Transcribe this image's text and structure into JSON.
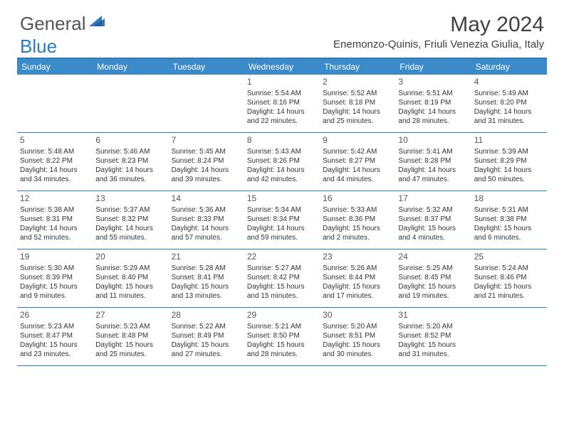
{
  "logo": {
    "general": "General",
    "blue": "Blue"
  },
  "title": "May 2024",
  "location": "Enemonzo-Quinis, Friuli Venezia Giulia, Italy",
  "brand_color": "#3b8aca",
  "border_color": "#2a7bbf",
  "text_color": "#333333",
  "days_of_week": [
    "Sunday",
    "Monday",
    "Tuesday",
    "Wednesday",
    "Thursday",
    "Friday",
    "Saturday"
  ],
  "rows": [
    [
      null,
      null,
      null,
      {
        "n": "1",
        "sr": "Sunrise: 5:54 AM",
        "ss": "Sunset: 8:16 PM",
        "d1": "Daylight: 14 hours",
        "d2": "and 22 minutes."
      },
      {
        "n": "2",
        "sr": "Sunrise: 5:52 AM",
        "ss": "Sunset: 8:18 PM",
        "d1": "Daylight: 14 hours",
        "d2": "and 25 minutes."
      },
      {
        "n": "3",
        "sr": "Sunrise: 5:51 AM",
        "ss": "Sunset: 8:19 PM",
        "d1": "Daylight: 14 hours",
        "d2": "and 28 minutes."
      },
      {
        "n": "4",
        "sr": "Sunrise: 5:49 AM",
        "ss": "Sunset: 8:20 PM",
        "d1": "Daylight: 14 hours",
        "d2": "and 31 minutes."
      }
    ],
    [
      {
        "n": "5",
        "sr": "Sunrise: 5:48 AM",
        "ss": "Sunset: 8:22 PM",
        "d1": "Daylight: 14 hours",
        "d2": "and 34 minutes."
      },
      {
        "n": "6",
        "sr": "Sunrise: 5:46 AM",
        "ss": "Sunset: 8:23 PM",
        "d1": "Daylight: 14 hours",
        "d2": "and 36 minutes."
      },
      {
        "n": "7",
        "sr": "Sunrise: 5:45 AM",
        "ss": "Sunset: 8:24 PM",
        "d1": "Daylight: 14 hours",
        "d2": "and 39 minutes."
      },
      {
        "n": "8",
        "sr": "Sunrise: 5:43 AM",
        "ss": "Sunset: 8:26 PM",
        "d1": "Daylight: 14 hours",
        "d2": "and 42 minutes."
      },
      {
        "n": "9",
        "sr": "Sunrise: 5:42 AM",
        "ss": "Sunset: 8:27 PM",
        "d1": "Daylight: 14 hours",
        "d2": "and 44 minutes."
      },
      {
        "n": "10",
        "sr": "Sunrise: 5:41 AM",
        "ss": "Sunset: 8:28 PM",
        "d1": "Daylight: 14 hours",
        "d2": "and 47 minutes."
      },
      {
        "n": "11",
        "sr": "Sunrise: 5:39 AM",
        "ss": "Sunset: 8:29 PM",
        "d1": "Daylight: 14 hours",
        "d2": "and 50 minutes."
      }
    ],
    [
      {
        "n": "12",
        "sr": "Sunrise: 5:38 AM",
        "ss": "Sunset: 8:31 PM",
        "d1": "Daylight: 14 hours",
        "d2": "and 52 minutes."
      },
      {
        "n": "13",
        "sr": "Sunrise: 5:37 AM",
        "ss": "Sunset: 8:32 PM",
        "d1": "Daylight: 14 hours",
        "d2": "and 55 minutes."
      },
      {
        "n": "14",
        "sr": "Sunrise: 5:36 AM",
        "ss": "Sunset: 8:33 PM",
        "d1": "Daylight: 14 hours",
        "d2": "and 57 minutes."
      },
      {
        "n": "15",
        "sr": "Sunrise: 5:34 AM",
        "ss": "Sunset: 8:34 PM",
        "d1": "Daylight: 14 hours",
        "d2": "and 59 minutes."
      },
      {
        "n": "16",
        "sr": "Sunrise: 5:33 AM",
        "ss": "Sunset: 8:36 PM",
        "d1": "Daylight: 15 hours",
        "d2": "and 2 minutes."
      },
      {
        "n": "17",
        "sr": "Sunrise: 5:32 AM",
        "ss": "Sunset: 8:37 PM",
        "d1": "Daylight: 15 hours",
        "d2": "and 4 minutes."
      },
      {
        "n": "18",
        "sr": "Sunrise: 5:31 AM",
        "ss": "Sunset: 8:38 PM",
        "d1": "Daylight: 15 hours",
        "d2": "and 6 minutes."
      }
    ],
    [
      {
        "n": "19",
        "sr": "Sunrise: 5:30 AM",
        "ss": "Sunset: 8:39 PM",
        "d1": "Daylight: 15 hours",
        "d2": "and 9 minutes."
      },
      {
        "n": "20",
        "sr": "Sunrise: 5:29 AM",
        "ss": "Sunset: 8:40 PM",
        "d1": "Daylight: 15 hours",
        "d2": "and 11 minutes."
      },
      {
        "n": "21",
        "sr": "Sunrise: 5:28 AM",
        "ss": "Sunset: 8:41 PM",
        "d1": "Daylight: 15 hours",
        "d2": "and 13 minutes."
      },
      {
        "n": "22",
        "sr": "Sunrise: 5:27 AM",
        "ss": "Sunset: 8:42 PM",
        "d1": "Daylight: 15 hours",
        "d2": "and 15 minutes."
      },
      {
        "n": "23",
        "sr": "Sunrise: 5:26 AM",
        "ss": "Sunset: 8:44 PM",
        "d1": "Daylight: 15 hours",
        "d2": "and 17 minutes."
      },
      {
        "n": "24",
        "sr": "Sunrise: 5:25 AM",
        "ss": "Sunset: 8:45 PM",
        "d1": "Daylight: 15 hours",
        "d2": "and 19 minutes."
      },
      {
        "n": "25",
        "sr": "Sunrise: 5:24 AM",
        "ss": "Sunset: 8:46 PM",
        "d1": "Daylight: 15 hours",
        "d2": "and 21 minutes."
      }
    ],
    [
      {
        "n": "26",
        "sr": "Sunrise: 5:23 AM",
        "ss": "Sunset: 8:47 PM",
        "d1": "Daylight: 15 hours",
        "d2": "and 23 minutes."
      },
      {
        "n": "27",
        "sr": "Sunrise: 5:23 AM",
        "ss": "Sunset: 8:48 PM",
        "d1": "Daylight: 15 hours",
        "d2": "and 25 minutes."
      },
      {
        "n": "28",
        "sr": "Sunrise: 5:22 AM",
        "ss": "Sunset: 8:49 PM",
        "d1": "Daylight: 15 hours",
        "d2": "and 27 minutes."
      },
      {
        "n": "29",
        "sr": "Sunrise: 5:21 AM",
        "ss": "Sunset: 8:50 PM",
        "d1": "Daylight: 15 hours",
        "d2": "and 28 minutes."
      },
      {
        "n": "30",
        "sr": "Sunrise: 5:20 AM",
        "ss": "Sunset: 8:51 PM",
        "d1": "Daylight: 15 hours",
        "d2": "and 30 minutes."
      },
      {
        "n": "31",
        "sr": "Sunrise: 5:20 AM",
        "ss": "Sunset: 8:52 PM",
        "d1": "Daylight: 15 hours",
        "d2": "and 31 minutes."
      },
      null
    ]
  ]
}
